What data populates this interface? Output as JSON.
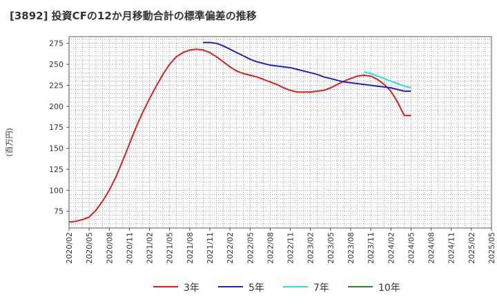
{
  "title": "[3892]  投資CFの12か月移動合計の標準偏差の推移",
  "y_unit_label": "(百万円)",
  "chart_data": {
    "type": "line",
    "title": "[3892]  投資CFの12か月移動合計の標準偏差の推移",
    "ylabel": "(百万円)",
    "xlabel": "",
    "ylim": [
      55,
      283
    ],
    "yticks": [
      75,
      100,
      125,
      150,
      175,
      200,
      225,
      250,
      275
    ],
    "xticks": [
      "2020/02",
      "2020/05",
      "2020/08",
      "2020/11",
      "2021/02",
      "2021/05",
      "2021/08",
      "2021/11",
      "2022/02",
      "2022/05",
      "2022/08",
      "2022/11",
      "2023/02",
      "2023/05",
      "2023/08",
      "2023/11",
      "2024/02",
      "2024/05",
      "2024/08",
      "2024/11",
      "2025/02",
      "2025/05"
    ],
    "grid": true,
    "legend_position": "bottom",
    "series": [
      {
        "name": "3年",
        "color": "#dd1c1c",
        "x": [
          "2020/02",
          "2020/03",
          "2020/04",
          "2020/05",
          "2020/06",
          "2020/07",
          "2020/08",
          "2020/09",
          "2020/10",
          "2020/11",
          "2020/12",
          "2021/01",
          "2021/02",
          "2021/03",
          "2021/04",
          "2021/05",
          "2021/06",
          "2021/07",
          "2021/08",
          "2021/09",
          "2021/10",
          "2021/11",
          "2021/12",
          "2022/01",
          "2022/02",
          "2022/03",
          "2022/04",
          "2022/05",
          "2022/06",
          "2022/07",
          "2022/08",
          "2022/09",
          "2022/10",
          "2022/11",
          "2022/12",
          "2023/01",
          "2023/02",
          "2023/03",
          "2023/04",
          "2023/05",
          "2023/06",
          "2023/07",
          "2023/08",
          "2023/09",
          "2023/10",
          "2023/11",
          "2023/12",
          "2024/01",
          "2024/02",
          "2024/03",
          "2024/04",
          "2024/05"
        ],
        "values": [
          62,
          63,
          65,
          68,
          76,
          87,
          100,
          116,
          135,
          155,
          175,
          193,
          209,
          224,
          238,
          250,
          259,
          264,
          267,
          268,
          267,
          264,
          259,
          253,
          247,
          242,
          239,
          237,
          235,
          232,
          229,
          226,
          222,
          219,
          217,
          217,
          217,
          218,
          219,
          222,
          226,
          230,
          233,
          236,
          237,
          236,
          232,
          226,
          218,
          205,
          189,
          189
        ]
      },
      {
        "name": "5年",
        "color": "#1f1fcc",
        "x": [
          "2021/10",
          "2021/11",
          "2021/12",
          "2022/01",
          "2022/02",
          "2022/03",
          "2022/04",
          "2022/05",
          "2022/06",
          "2022/07",
          "2022/08",
          "2022/09",
          "2022/10",
          "2022/11",
          "2022/12",
          "2023/01",
          "2023/02",
          "2023/03",
          "2023/04",
          "2023/05",
          "2023/06",
          "2023/07",
          "2023/08",
          "2023/09",
          "2023/10",
          "2023/11",
          "2023/12",
          "2024/01",
          "2024/02",
          "2024/03",
          "2024/04",
          "2024/05"
        ],
        "values": [
          276,
          276,
          275,
          272,
          268,
          264,
          260,
          256,
          253,
          251,
          249,
          248,
          247,
          246,
          244,
          242,
          240,
          238,
          235,
          233,
          231,
          229,
          228,
          227,
          226,
          225,
          224,
          223,
          222,
          220,
          218,
          218
        ]
      },
      {
        "name": "7年",
        "color": "#22e0e0",
        "x": [
          "2023/10",
          "2023/11",
          "2023/12",
          "2024/01",
          "2024/02",
          "2024/03",
          "2024/04",
          "2024/05"
        ],
        "values": [
          241,
          239,
          236,
          233,
          230,
          227,
          224,
          222
        ]
      },
      {
        "name": "10年",
        "color": "#228b22",
        "x": [],
        "values": []
      }
    ]
  }
}
